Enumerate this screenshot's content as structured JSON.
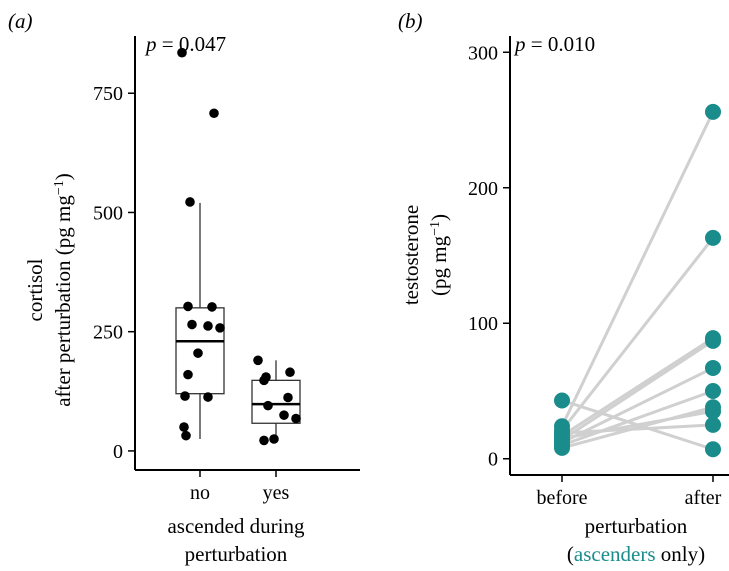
{
  "colors": {
    "ascender": "#1a8c8c",
    "connector": "#d0d0d0",
    "point": "#000000"
  },
  "chart_data": [
    {
      "type": "box",
      "panel_label": "(a)",
      "annotation": {
        "p_label": "p",
        "p_value": "= 0.047"
      },
      "ylabel_lines": [
        "cortisol",
        "after perturbation (pg mg",
        "−1",
        ")"
      ],
      "xlabel_lines": [
        "ascended during",
        "perturbation"
      ],
      "categories": [
        "no",
        "yes"
      ],
      "yticks": [
        0,
        250,
        500,
        750
      ],
      "ytick_labels": [
        "0",
        "250",
        "500",
        "750"
      ],
      "ylim": [
        -40,
        870
      ],
      "boxes": [
        {
          "category": "no",
          "whisker_low": 25,
          "q1": 120,
          "median": 230,
          "q3": 300,
          "whisker_high": 520
        },
        {
          "category": "yes",
          "whisker_low": 20,
          "q1": 58,
          "median": 98,
          "q3": 148,
          "whisker_high": 190
        }
      ],
      "points": [
        {
          "category": "no",
          "values": [
            835,
            708,
            522,
            303,
            302,
            265,
            262,
            258,
            205,
            160,
            115,
            113,
            50,
            32
          ]
        },
        {
          "category": "yes",
          "values": [
            190,
            165,
            155,
            148,
            112,
            95,
            75,
            68,
            25,
            22
          ]
        }
      ]
    },
    {
      "type": "line",
      "panel_label": "(b)",
      "annotation": {
        "p_label": "p",
        "p_value": "= 0.010"
      },
      "ylabel_lines": [
        "testosterone",
        "(pg mg",
        "−1",
        ")"
      ],
      "xlabel_lines": [
        "perturbation"
      ],
      "xlabel_note": {
        "open": "(",
        "colored": "ascenders",
        "rest": " only)"
      },
      "categories": [
        "before",
        "after"
      ],
      "yticks": [
        0,
        100,
        200,
        300
      ],
      "ytick_labels": [
        "0",
        "100",
        "200",
        "300"
      ],
      "ylim": [
        -12,
        312
      ],
      "pairs": [
        {
          "before": 43,
          "after": 7
        },
        {
          "before": 24,
          "after": 256
        },
        {
          "before": 21,
          "after": 163
        },
        {
          "before": 17,
          "after": 89
        },
        {
          "before": 14,
          "after": 87
        },
        {
          "before": 12,
          "after": 67
        },
        {
          "before": 10,
          "after": 50
        },
        {
          "before": 8,
          "after": 38
        },
        {
          "before": 15,
          "after": 35
        },
        {
          "before": 19,
          "after": 25
        }
      ]
    }
  ]
}
